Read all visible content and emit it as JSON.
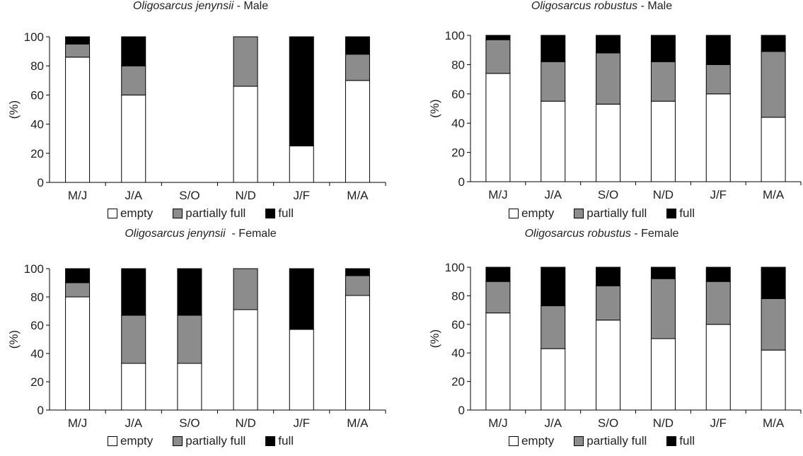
{
  "chart_data": [
    {
      "type": "bar",
      "stacked": true,
      "title_species": "Oligosarcus jenynsii",
      "title_suffix": " - Male",
      "ylabel": "(%)",
      "ylim": [
        0,
        100
      ],
      "yticks": [
        0,
        20,
        40,
        60,
        80,
        100
      ],
      "categories": [
        "M/J",
        "J/A",
        "S/O",
        "N/D",
        "J/F",
        "M/A"
      ],
      "series": [
        {
          "name": "empty",
          "values": [
            86,
            60,
            0,
            66,
            25,
            70
          ]
        },
        {
          "name": "partially full",
          "values": [
            9,
            20,
            0,
            34,
            0,
            18
          ]
        },
        {
          "name": "full",
          "values": [
            5,
            20,
            0,
            0,
            75,
            12
          ]
        }
      ],
      "legend": "bottom"
    },
    {
      "type": "bar",
      "stacked": true,
      "title_species": "Oligosarcus robustus",
      "title_suffix": " - Male",
      "ylabel": "(%)",
      "ylim": [
        0,
        100
      ],
      "yticks": [
        0,
        20,
        40,
        60,
        80,
        100
      ],
      "categories": [
        "M/J",
        "J/A",
        "S/O",
        "N/D",
        "J/F",
        "M/A"
      ],
      "series": [
        {
          "name": "empty",
          "values": [
            74,
            55,
            53,
            55,
            60,
            44
          ]
        },
        {
          "name": "partially full",
          "values": [
            23,
            27,
            35,
            27,
            20,
            45
          ]
        },
        {
          "name": "full",
          "values": [
            3,
            18,
            12,
            18,
            20,
            11
          ]
        }
      ],
      "legend": "bottom"
    },
    {
      "type": "bar",
      "stacked": true,
      "title_species": "Oligosarcus jenynsii",
      "title_suffix": "  - Female",
      "ylabel": "(%)",
      "ylim": [
        0,
        100
      ],
      "yticks": [
        0,
        20,
        40,
        60,
        80,
        100
      ],
      "categories": [
        "M/J",
        "J/A",
        "S/O",
        "N/D",
        "J/F",
        "M/A"
      ],
      "series": [
        {
          "name": "empty",
          "values": [
            80,
            33,
            33,
            71,
            57,
            81
          ]
        },
        {
          "name": "partially full",
          "values": [
            10,
            34,
            34,
            29,
            0,
            14
          ]
        },
        {
          "name": "full",
          "values": [
            10,
            33,
            33,
            0,
            43,
            5
          ]
        }
      ],
      "legend": "bottom"
    },
    {
      "type": "bar",
      "stacked": true,
      "title_species": "Oligosarcus robustus",
      "title_suffix": " - Female",
      "ylabel": "(%)",
      "ylim": [
        0,
        100
      ],
      "yticks": [
        0,
        20,
        40,
        60,
        80,
        100
      ],
      "categories": [
        "M/J",
        "J/A",
        "S/O",
        "N/D",
        "J/F",
        "M/A"
      ],
      "series": [
        {
          "name": "empty",
          "values": [
            68,
            43,
            63,
            50,
            60,
            42
          ]
        },
        {
          "name": "partially full",
          "values": [
            22,
            30,
            24,
            42,
            30,
            36
          ]
        },
        {
          "name": "full",
          "values": [
            10,
            27,
            13,
            8,
            10,
            22
          ]
        }
      ],
      "legend": "bottom"
    }
  ],
  "colors": {
    "empty": "#ffffff",
    "partially full": "#8c8c8c",
    "full": "#000000"
  }
}
